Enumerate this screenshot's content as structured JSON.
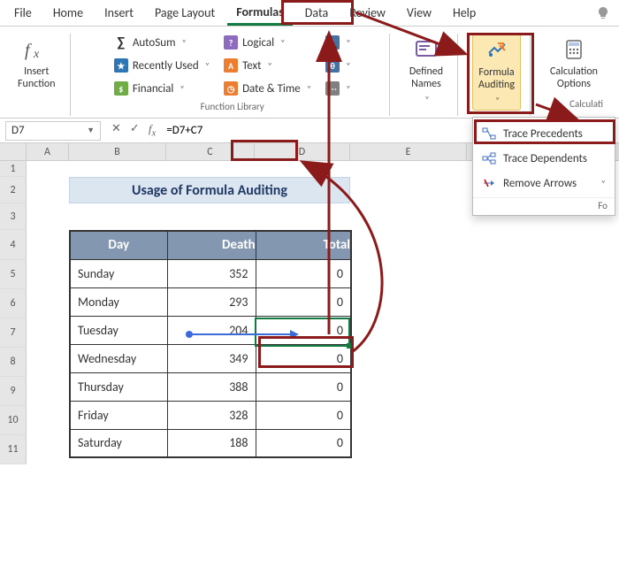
{
  "tabs": {
    "file": "File",
    "home": "Home",
    "insert": "Insert",
    "pagelayout": "Page Layout",
    "formulas": "Formulas",
    "data": "Data",
    "review": "Review",
    "view": "View",
    "help": "Help"
  },
  "ribbon": {
    "insert_function": "Insert\nFunction",
    "autosum": "AutoSum",
    "recent": "Recently Used",
    "financial": "Financial",
    "logical": "Logical",
    "text": "Text",
    "datetime": "Date & Time",
    "group_fl": "Function Library",
    "defined_names": "Defined\nNames",
    "formula_auditing": "Formula\nAuditing",
    "calculation_options": "Calculation\nOptions",
    "group_calc": "Calculati"
  },
  "dropdown": {
    "trace_precedents": "Trace Precedents",
    "trace_dependents": "Trace Dependents",
    "remove_arrows": "Remove Arrows",
    "foot": "Fo"
  },
  "formula_bar": {
    "name_box": "D7",
    "formula": "=D7+C7"
  },
  "columns": [
    "A",
    "B",
    "C",
    "D",
    "E"
  ],
  "title": "Usage of Formula Auditing",
  "table": {
    "headers": [
      "Day",
      "Death",
      "Total"
    ],
    "rows": [
      [
        "Sunday",
        "352",
        "0"
      ],
      [
        "Monday",
        "293",
        "0"
      ],
      [
        "Tuesday",
        "204",
        "0"
      ],
      [
        "Wednesday",
        "349",
        "0"
      ],
      [
        "Thursday",
        "388",
        "0"
      ],
      [
        "Friday",
        "328",
        "0"
      ],
      [
        "Saturday",
        "188",
        "0"
      ]
    ]
  },
  "colors": {
    "accent": "#107c41",
    "highlight": "#8b1a1a",
    "tracer": "#3a6bd6",
    "table_header_bg": "#8497b0",
    "title_bg": "#dce6f1",
    "icon_sigma": "#333333",
    "icon_blue": "#2e75b6",
    "icon_green": "#70ad47",
    "icon_orange": "#ed7d31",
    "icon_teal": "#4472a4",
    "icon_gray": "#808080"
  }
}
